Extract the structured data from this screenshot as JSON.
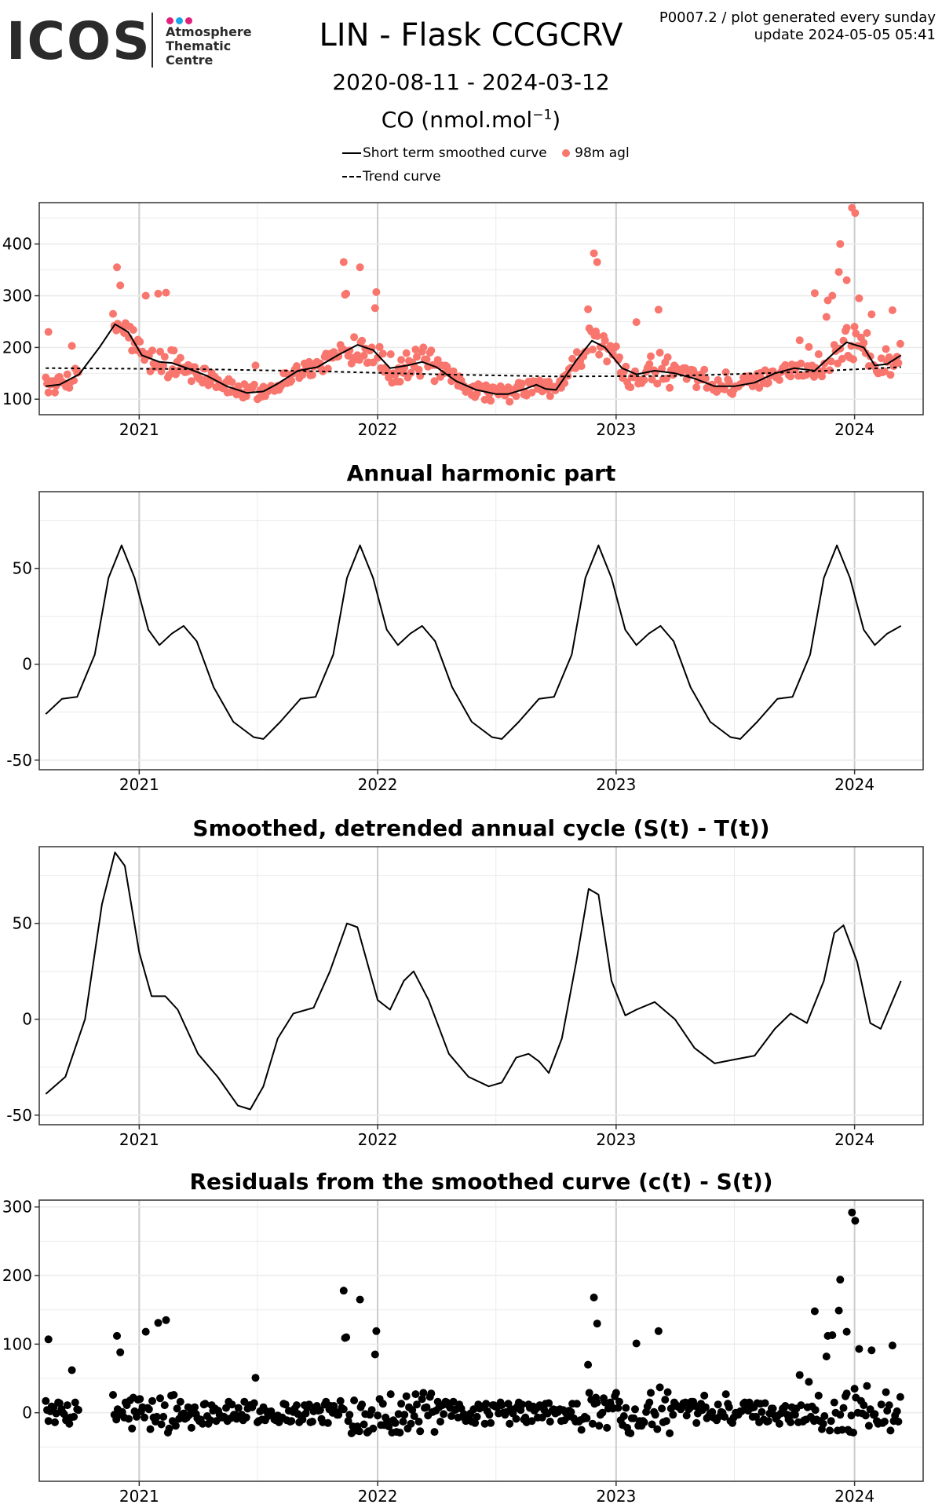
{
  "header": {
    "logo_text": "ICOS",
    "logo_dots": [
      "#e0207a",
      "#1aa6e8",
      "#e0207a"
    ],
    "logo_sub": [
      "Atmosphere",
      "Thematic",
      "Centre"
    ],
    "title": "LIN - Flask CCGCRV",
    "date_range": "2020-08-11 - 2024-03-12",
    "species_label": "CO (nmol.mol",
    "species_sup": "−1",
    "species_close": ")",
    "meta_line1": "P0007.2 / plot generated every sunday",
    "meta_line2": "update  2024-05-05 05:41"
  },
  "legend": {
    "items": [
      {
        "label": "Short term smoothed curve",
        "style": "solid"
      },
      {
        "label": "98m agl",
        "style": "point"
      },
      {
        "label": "Trend curve",
        "style": "dashed"
      }
    ]
  },
  "colors": {
    "points_main": "#f8766d",
    "points_resid": "#000000",
    "line": "#000000",
    "grid_major": "#cccccc",
    "grid_minor": "#ebebeb"
  },
  "chart_data": [
    {
      "type": "scatter",
      "title": "",
      "xlabel": "",
      "ylabel": "",
      "xlim": [
        "2020-08-01",
        "2024-04-15"
      ],
      "ylim": [
        70,
        480
      ],
      "x_ticks": [
        "2021",
        "2022",
        "2023",
        "2024"
      ],
      "x_tick_dates": [
        "2021-01-01",
        "2022-01-01",
        "2023-01-01",
        "2024-01-01"
      ],
      "y_ticks": [
        100,
        200,
        300,
        400
      ],
      "series": [
        {
          "name": "98m agl",
          "kind": "points",
          "points": []
        },
        {
          "name": "Short term smoothed curve",
          "kind": "line",
          "points": [
            [
              "2020-08-11",
              125
            ],
            [
              "2020-09-01",
              128
            ],
            [
              "2020-10-01",
              148
            ],
            [
              "2020-11-01",
              200
            ],
            [
              "2020-11-25",
              245
            ],
            [
              "2020-12-15",
              230
            ],
            [
              "2021-01-05",
              185
            ],
            [
              "2021-02-01",
              172
            ],
            [
              "2021-02-20",
              170
            ],
            [
              "2021-03-15",
              160
            ],
            [
              "2021-04-15",
              145
            ],
            [
              "2021-05-15",
              125
            ],
            [
              "2021-06-15",
              112
            ],
            [
              "2021-07-10",
              115
            ],
            [
              "2021-08-01",
              130
            ],
            [
              "2021-09-01",
              155
            ],
            [
              "2021-10-01",
              162
            ],
            [
              "2021-11-01",
              185
            ],
            [
              "2021-12-01",
              205
            ],
            [
              "2021-12-25",
              195
            ],
            [
              "2022-01-20",
              160
            ],
            [
              "2022-02-15",
              165
            ],
            [
              "2022-03-10",
              172
            ],
            [
              "2022-04-01",
              162
            ],
            [
              "2022-05-01",
              135
            ],
            [
              "2022-06-01",
              118
            ],
            [
              "2022-07-01",
              110
            ],
            [
              "2022-07-20",
              110
            ],
            [
              "2022-08-15",
              120
            ],
            [
              "2022-09-01",
              128
            ],
            [
              "2022-09-15",
              120
            ],
            [
              "2022-10-01",
              118
            ],
            [
              "2022-11-01",
              175
            ],
            [
              "2022-11-25",
              213
            ],
            [
              "2022-12-15",
              200
            ],
            [
              "2023-01-10",
              160
            ],
            [
              "2023-02-01",
              148
            ],
            [
              "2023-03-01",
              155
            ],
            [
              "2023-04-01",
              150
            ],
            [
              "2023-05-01",
              140
            ],
            [
              "2023-06-01",
              125
            ],
            [
              "2023-07-01",
              125
            ],
            [
              "2023-08-01",
              132
            ],
            [
              "2023-09-01",
              150
            ],
            [
              "2023-10-01",
              160
            ],
            [
              "2023-11-01",
              155
            ],
            [
              "2023-12-01",
              190
            ],
            [
              "2023-12-20",
              210
            ],
            [
              "2024-01-15",
              200
            ],
            [
              "2024-02-01",
              165
            ],
            [
              "2024-02-20",
              168
            ],
            [
              "2024-03-12",
              185
            ]
          ]
        },
        {
          "name": "Trend curve",
          "kind": "dashed",
          "points": [
            [
              "2020-08-11",
              160
            ],
            [
              "2021-04-01",
              158
            ],
            [
              "2021-10-01",
              154
            ],
            [
              "2022-04-01",
              148
            ],
            [
              "2022-10-01",
              144
            ],
            [
              "2023-04-01",
              145
            ],
            [
              "2023-10-01",
              152
            ],
            [
              "2024-03-12",
              162
            ]
          ]
        }
      ]
    },
    {
      "type": "line",
      "title": "Annual harmonic part",
      "xlabel": "",
      "ylabel": "",
      "xlim": [
        "2020-08-01",
        "2024-04-15"
      ],
      "ylim": [
        -55,
        90
      ],
      "x_ticks": [
        "2021",
        "2022",
        "2023",
        "2024"
      ],
      "x_tick_dates": [
        "2021-01-01",
        "2022-01-01",
        "2023-01-01",
        "2024-01-01"
      ],
      "y_ticks": [
        -50,
        0,
        50
      ],
      "series": [
        {
          "name": "",
          "kind": "line",
          "points": [
            [
              "2020-08-11",
              -26
            ],
            [
              "2020-09-05",
              -18
            ],
            [
              "2020-09-28",
              -17
            ],
            [
              "2020-10-25",
              5
            ],
            [
              "2020-11-15",
              45
            ],
            [
              "2020-12-05",
              62
            ],
            [
              "2020-12-25",
              45
            ],
            [
              "2021-01-15",
              18
            ],
            [
              "2021-02-01",
              10
            ],
            [
              "2021-02-20",
              16
            ],
            [
              "2021-03-10",
              20
            ],
            [
              "2021-03-30",
              12
            ],
            [
              "2021-04-25",
              -12
            ],
            [
              "2021-05-25",
              -30
            ],
            [
              "2021-06-25",
              -38
            ],
            [
              "2021-07-10",
              -39
            ],
            [
              "2021-08-05",
              -30
            ],
            [
              "2021-09-05",
              -18
            ],
            [
              "2021-09-28",
              -17
            ],
            [
              "2021-10-25",
              5
            ],
            [
              "2021-11-15",
              45
            ],
            [
              "2021-12-05",
              62
            ],
            [
              "2021-12-25",
              45
            ],
            [
              "2022-01-15",
              18
            ],
            [
              "2022-02-01",
              10
            ],
            [
              "2022-02-20",
              16
            ],
            [
              "2022-03-10",
              20
            ],
            [
              "2022-03-30",
              12
            ],
            [
              "2022-04-25",
              -12
            ],
            [
              "2022-05-25",
              -30
            ],
            [
              "2022-06-25",
              -38
            ],
            [
              "2022-07-10",
              -39
            ],
            [
              "2022-08-05",
              -30
            ],
            [
              "2022-09-05",
              -18
            ],
            [
              "2022-09-28",
              -17
            ],
            [
              "2022-10-25",
              5
            ],
            [
              "2022-11-15",
              45
            ],
            [
              "2022-12-05",
              62
            ],
            [
              "2022-12-25",
              45
            ],
            [
              "2023-01-15",
              18
            ],
            [
              "2023-02-01",
              10
            ],
            [
              "2023-02-20",
              16
            ],
            [
              "2023-03-10",
              20
            ],
            [
              "2023-03-30",
              12
            ],
            [
              "2023-04-25",
              -12
            ],
            [
              "2023-05-25",
              -30
            ],
            [
              "2023-06-25",
              -38
            ],
            [
              "2023-07-10",
              -39
            ],
            [
              "2023-08-05",
              -30
            ],
            [
              "2023-09-05",
              -18
            ],
            [
              "2023-09-28",
              -17
            ],
            [
              "2023-10-25",
              5
            ],
            [
              "2023-11-15",
              45
            ],
            [
              "2023-12-05",
              62
            ],
            [
              "2023-12-25",
              45
            ],
            [
              "2024-01-15",
              18
            ],
            [
              "2024-02-01",
              10
            ],
            [
              "2024-02-20",
              16
            ],
            [
              "2024-03-12",
              20
            ]
          ]
        }
      ]
    },
    {
      "type": "line",
      "title": "Smoothed, detrended annual cycle (S(t) - T(t))",
      "xlabel": "",
      "ylabel": "",
      "xlim": [
        "2020-08-01",
        "2024-04-15"
      ],
      "ylim": [
        -55,
        90
      ],
      "x_ticks": [
        "2021",
        "2022",
        "2023",
        "2024"
      ],
      "x_tick_dates": [
        "2021-01-01",
        "2022-01-01",
        "2023-01-01",
        "2024-01-01"
      ],
      "y_ticks": [
        -50,
        0,
        50
      ],
      "series": [
        {
          "name": "",
          "kind": "line",
          "points": [
            [
              "2020-08-11",
              -39
            ],
            [
              "2020-09-10",
              -30
            ],
            [
              "2020-10-10",
              0
            ],
            [
              "2020-11-05",
              60
            ],
            [
              "2020-11-25",
              87
            ],
            [
              "2020-12-10",
              80
            ],
            [
              "2021-01-01",
              35
            ],
            [
              "2021-01-20",
              12
            ],
            [
              "2021-02-10",
              12
            ],
            [
              "2021-03-01",
              5
            ],
            [
              "2021-04-01",
              -18
            ],
            [
              "2021-05-01",
              -30
            ],
            [
              "2021-06-01",
              -45
            ],
            [
              "2021-06-20",
              -47
            ],
            [
              "2021-07-10",
              -35
            ],
            [
              "2021-08-01",
              -10
            ],
            [
              "2021-08-25",
              3
            ],
            [
              "2021-09-25",
              6
            ],
            [
              "2021-10-20",
              25
            ],
            [
              "2021-11-15",
              50
            ],
            [
              "2021-12-01",
              48
            ],
            [
              "2022-01-01",
              10
            ],
            [
              "2022-01-20",
              5
            ],
            [
              "2022-02-10",
              20
            ],
            [
              "2022-02-25",
              25
            ],
            [
              "2022-03-20",
              10
            ],
            [
              "2022-04-20",
              -18
            ],
            [
              "2022-05-20",
              -30
            ],
            [
              "2022-06-20",
              -35
            ],
            [
              "2022-07-10",
              -33
            ],
            [
              "2022-08-01",
              -20
            ],
            [
              "2022-08-20",
              -18
            ],
            [
              "2022-09-05",
              -22
            ],
            [
              "2022-09-20",
              -28
            ],
            [
              "2022-10-10",
              -10
            ],
            [
              "2022-11-01",
              30
            ],
            [
              "2022-11-20",
              68
            ],
            [
              "2022-12-05",
              65
            ],
            [
              "2022-12-25",
              20
            ],
            [
              "2023-01-15",
              2
            ],
            [
              "2023-02-01",
              5
            ],
            [
              "2023-03-01",
              9
            ],
            [
              "2023-04-01",
              0
            ],
            [
              "2023-05-01",
              -15
            ],
            [
              "2023-06-01",
              -23
            ],
            [
              "2023-07-01",
              -21
            ],
            [
              "2023-08-01",
              -19
            ],
            [
              "2023-09-01",
              -5
            ],
            [
              "2023-09-25",
              3
            ],
            [
              "2023-10-20",
              -2
            ],
            [
              "2023-11-15",
              20
            ],
            [
              "2023-12-01",
              45
            ],
            [
              "2023-12-15",
              49
            ],
            [
              "2024-01-05",
              30
            ],
            [
              "2024-01-25",
              -2
            ],
            [
              "2024-02-10",
              -5
            ],
            [
              "2024-03-12",
              20
            ]
          ]
        }
      ]
    },
    {
      "type": "scatter",
      "title": "Residuals from the smoothed curve (c(t) - S(t))",
      "xlabel": "",
      "ylabel": "",
      "xlim": [
        "2020-08-01",
        "2024-04-15"
      ],
      "ylim": [
        -100,
        310
      ],
      "x_ticks": [
        "2021",
        "2022",
        "2023",
        "2024"
      ],
      "x_tick_dates": [
        "2021-01-01",
        "2022-01-01",
        "2023-01-01",
        "2024-01-01"
      ],
      "y_ticks": [
        0,
        100,
        200,
        300
      ],
      "series": [
        {
          "name": "",
          "kind": "points",
          "points": []
        }
      ]
    }
  ]
}
